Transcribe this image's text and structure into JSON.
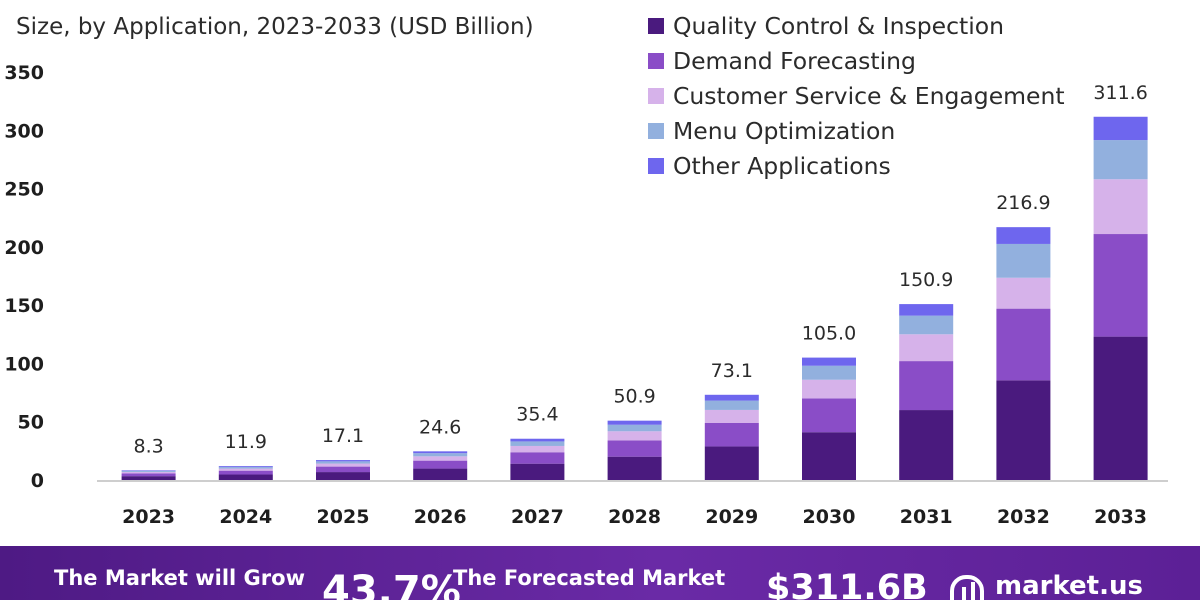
{
  "chart_data": {
    "type": "bar",
    "stacked": true,
    "subtitle": "Size, by Application, 2023-2033 (USD Billion)",
    "categories": [
      "2023",
      "2024",
      "2025",
      "2026",
      "2027",
      "2028",
      "2029",
      "2030",
      "2031",
      "2032",
      "2033"
    ],
    "totals": [
      8.3,
      11.9,
      17.1,
      24.6,
      35.4,
      50.9,
      73.1,
      105.0,
      150.9,
      216.9,
      311.6
    ],
    "total_labels": [
      "8.3",
      "11.9",
      "17.1",
      "24.6",
      "35.4",
      "50.9",
      "73.1",
      "105.0",
      "150.9",
      "216.9",
      "311.6"
    ],
    "series": [
      {
        "name": "Quality Control & Inspection",
        "color": "#4a1a7e",
        "values": [
          3.3,
          4.7,
          6.8,
          9.8,
          14.0,
          20.0,
          28.8,
          41.0,
          60.0,
          85.5,
          123.0
        ]
      },
      {
        "name": "Demand Forecasting",
        "color": "#8a4dc7",
        "values": [
          2.3,
          3.3,
          4.7,
          6.8,
          9.8,
          14.0,
          20.1,
          29.0,
          42.0,
          61.5,
          88.0
        ]
      },
      {
        "name": "Customer Service & Engagement",
        "color": "#d6b2ea",
        "values": [
          1.3,
          1.8,
          2.6,
          3.7,
          5.4,
          7.8,
          11.2,
          16.0,
          23.0,
          26.5,
          47.0
        ]
      },
      {
        "name": "Menu Optimization",
        "color": "#92b0de",
        "values": [
          0.9,
          1.3,
          1.9,
          2.7,
          3.9,
          5.6,
          8.0,
          12.0,
          16.0,
          29.0,
          33.6
        ]
      },
      {
        "name": "Other Applications",
        "color": "#6e66ee",
        "values": [
          0.5,
          0.8,
          1.1,
          1.6,
          2.3,
          3.5,
          5.0,
          7.0,
          9.9,
          14.4,
          20.0
        ]
      }
    ],
    "ylim": [
      0,
      350
    ],
    "yticks": [
      0,
      50,
      100,
      150,
      200,
      250,
      300,
      350
    ],
    "grid": false,
    "legend_position": "top-right"
  },
  "footer": {
    "grow_text": "The Market will Grow",
    "cagr_value": "43.7%",
    "forecast_text": "The Forecasted Market",
    "market_value": "$311.6B",
    "brand_name": "market.us"
  }
}
